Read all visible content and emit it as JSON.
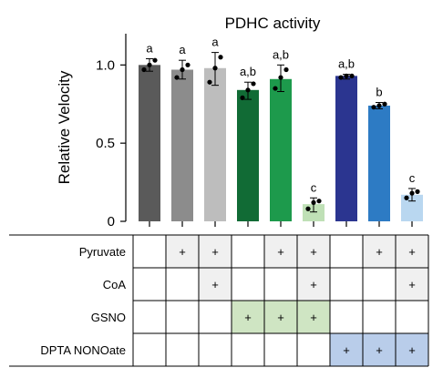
{
  "chart_data": {
    "type": "bar",
    "title": "PDHC activity",
    "ylabel": "Relative Velocity",
    "xlabel": "",
    "ylim": [
      0,
      1.2
    ],
    "yticks": [
      0,
      0.5,
      1.0
    ],
    "ytick_labels": [
      "0",
      "0.5",
      "1.0"
    ],
    "grid": false,
    "bars": [
      {
        "value": 1.0,
        "err_low": 0.96,
        "err_high": 1.04,
        "points": [
          0.97,
          1.0,
          1.03
        ],
        "color": "#5a5a5a",
        "sig": "a"
      },
      {
        "value": 0.97,
        "err_low": 0.91,
        "err_high": 1.03,
        "points": [
          0.92,
          0.97,
          1.0
        ],
        "color": "#8c8c8c",
        "sig": "a"
      },
      {
        "value": 0.98,
        "err_low": 0.87,
        "err_high": 1.08,
        "points": [
          0.89,
          0.98,
          1.05
        ],
        "color": "#bdbdbd",
        "sig": "a"
      },
      {
        "value": 0.84,
        "err_low": 0.78,
        "err_high": 0.89,
        "points": [
          0.79,
          0.84,
          0.88
        ],
        "color": "#116b35",
        "sig": "a,b"
      },
      {
        "value": 0.91,
        "err_low": 0.83,
        "err_high": 1.0,
        "points": [
          0.85,
          0.92,
          0.97
        ],
        "color": "#1d9a4c",
        "sig": "a,b"
      },
      {
        "value": 0.11,
        "err_low": 0.06,
        "err_high": 0.15,
        "points": [
          0.08,
          0.12,
          0.13
        ],
        "color": "#bfe0b6",
        "sig": "c"
      },
      {
        "value": 0.93,
        "err_low": 0.91,
        "err_high": 0.94,
        "points": [
          0.92,
          0.93,
          0.93
        ],
        "color": "#2b3590",
        "sig": "a,b"
      },
      {
        "value": 0.74,
        "err_low": 0.72,
        "err_high": 0.76,
        "points": [
          0.73,
          0.74,
          0.75
        ],
        "color": "#2d7bc4",
        "sig": "b"
      },
      {
        "value": 0.17,
        "err_low": 0.13,
        "err_high": 0.21,
        "points": [
          0.15,
          0.18,
          0.19
        ],
        "color": "#b9d7f0",
        "sig": "c"
      }
    ]
  },
  "condition_table": {
    "plus_symbol": "+",
    "rows": [
      {
        "label": "Pyruvate",
        "fill": "#f0f0f0",
        "cells": [
          false,
          true,
          true,
          false,
          true,
          true,
          false,
          true,
          true
        ]
      },
      {
        "label": "CoA",
        "fill": "#f0f0f0",
        "cells": [
          false,
          false,
          true,
          false,
          false,
          true,
          false,
          false,
          true
        ]
      },
      {
        "label": "GSNO",
        "fill": "#cfe5c3",
        "cells": [
          false,
          false,
          false,
          true,
          true,
          true,
          false,
          false,
          false
        ]
      },
      {
        "label": "DPTA NONOate",
        "fill": "#b9cdea",
        "cells": [
          false,
          false,
          false,
          false,
          false,
          false,
          true,
          true,
          true
        ]
      }
    ]
  }
}
